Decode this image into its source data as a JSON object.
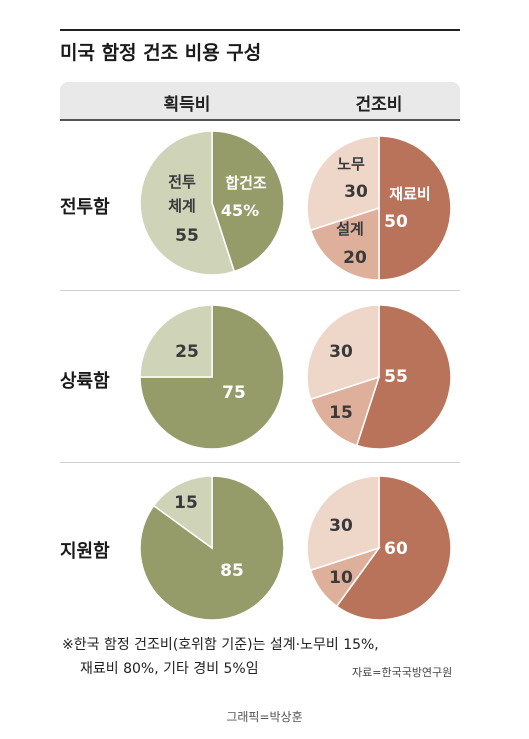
{
  "title": "미국 함정 건조 비용 구성",
  "columns": [
    "획득비",
    "건조비"
  ],
  "rows": [
    "전투함",
    "상륙함",
    "지원함"
  ],
  "colors": {
    "acq_light": "#cfd3b8",
    "acq_dark": "#959c69",
    "build_light": "#eed6c9",
    "build_mid": "#deb09b",
    "build_dark": "#b9735a"
  },
  "chart_data": [
    {
      "type": "pie",
      "row": "전투함",
      "column": "획득비",
      "slices": [
        {
          "label": "합건조",
          "value": 45
        },
        {
          "label": "전투 체계",
          "value": 55
        }
      ]
    },
    {
      "type": "pie",
      "row": "전투함",
      "column": "건조비",
      "slices": [
        {
          "label": "재료비",
          "value": 50
        },
        {
          "label": "설계",
          "value": 20
        },
        {
          "label": "노무",
          "value": 30
        }
      ]
    },
    {
      "type": "pie",
      "row": "상륙함",
      "column": "획득비",
      "slices": [
        {
          "label": "",
          "value": 75
        },
        {
          "label": "",
          "value": 25
        }
      ]
    },
    {
      "type": "pie",
      "row": "상륙함",
      "column": "건조비",
      "slices": [
        {
          "label": "",
          "value": 55
        },
        {
          "label": "",
          "value": 15
        },
        {
          "label": "",
          "value": 30
        }
      ]
    },
    {
      "type": "pie",
      "row": "지원함",
      "column": "획득비",
      "slices": [
        {
          "label": "",
          "value": 85
        },
        {
          "label": "",
          "value": 15
        }
      ]
    },
    {
      "type": "pie",
      "row": "지원함",
      "column": "건조비",
      "slices": [
        {
          "label": "",
          "value": 60
        },
        {
          "label": "",
          "value": 10
        },
        {
          "label": "",
          "value": 30
        }
      ]
    }
  ],
  "labels": {
    "combat_acq_right": [
      "합건조",
      "45%"
    ],
    "combat_acq_left": [
      "전투",
      "체계",
      "55"
    ],
    "combat_build_right": [
      "재료비",
      "50"
    ],
    "combat_build_topleft": [
      "노무",
      "30"
    ],
    "combat_build_bottomleft": [
      "설계",
      "20"
    ]
  },
  "note_line1": "※한국 함정 건조비(호위함 기준)는 설계·노무비 15%,",
  "note_line2": "재료비 80%, 기타 경비 5%임",
  "source": "자료=한국국방연구원",
  "credit": "그래픽=박상훈"
}
